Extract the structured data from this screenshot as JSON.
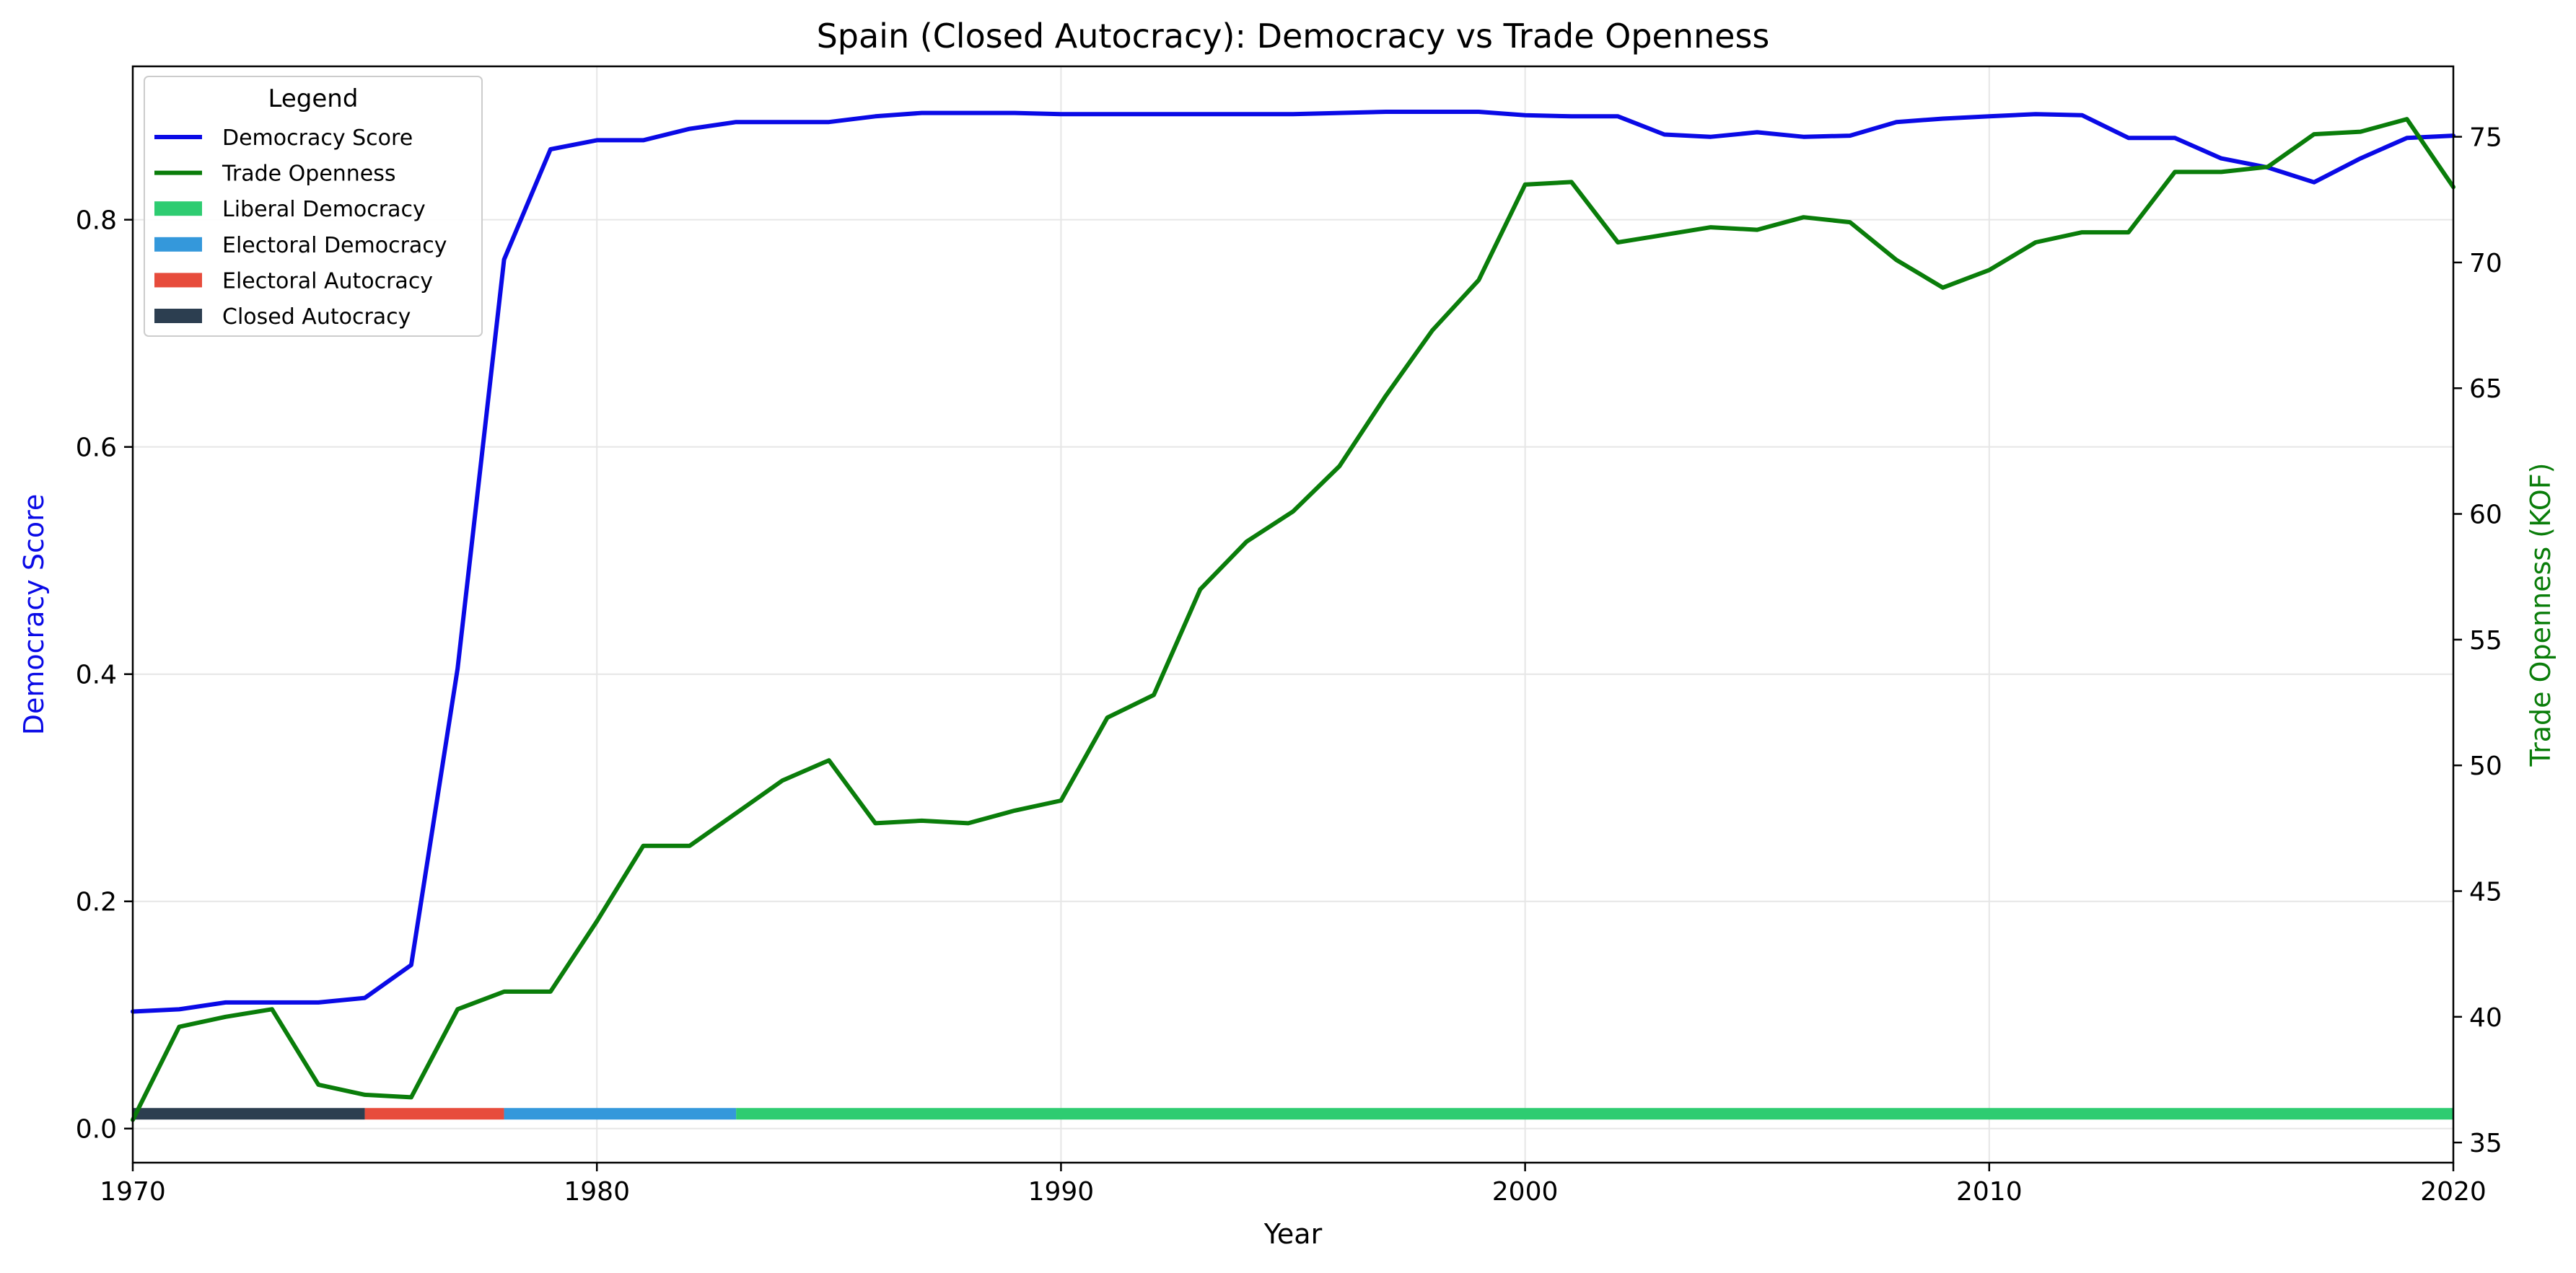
{
  "chart_data": {
    "type": "line",
    "title": "Spain (Closed Autocracy): Democracy vs Trade Openness",
    "xlabel": "Year",
    "ylabel_left": "Democracy Score",
    "ylabel_right": "Trade Openness (KOF)",
    "xlim": [
      1970,
      2020
    ],
    "ylim_left": [
      -0.03,
      0.935
    ],
    "ylim_right": [
      34.2,
      77.8
    ],
    "x_ticks": [
      1970,
      1980,
      1990,
      2000,
      2010,
      2020
    ],
    "y_left_ticks": [
      0.0,
      0.2,
      0.4,
      0.6,
      0.8
    ],
    "y_left_tick_labels": [
      "0.0",
      "0.2",
      "0.4",
      "0.6",
      "0.8"
    ],
    "y_right_ticks": [
      35,
      40,
      45,
      50,
      55,
      60,
      65,
      70,
      75
    ],
    "grid": true,
    "legend_title": "Legend",
    "legend_position": "top-left",
    "colors": {
      "democracy": "#0a0ae6",
      "trade": "#0a7d0a",
      "liberal": "#2ecc71",
      "electoral_dem": "#3498db",
      "electoral_aut": "#e74c3c",
      "closed_aut": "#2c3e50"
    },
    "years": [
      1970,
      1971,
      1972,
      1973,
      1974,
      1975,
      1976,
      1977,
      1978,
      1979,
      1980,
      1981,
      1982,
      1983,
      1984,
      1985,
      1986,
      1987,
      1988,
      1989,
      1990,
      1991,
      1992,
      1993,
      1994,
      1995,
      1996,
      1997,
      1998,
      1999,
      2000,
      2001,
      2002,
      2003,
      2004,
      2005,
      2006,
      2007,
      2008,
      2009,
      2010,
      2011,
      2012,
      2013,
      2014,
      2015,
      2016,
      2017,
      2018,
      2019,
      2020
    ],
    "series": [
      {
        "name": "Democracy Score",
        "axis": "left",
        "color": "#0a0ae6",
        "values": [
          0.103,
          0.105,
          0.111,
          0.111,
          0.111,
          0.115,
          0.144,
          0.405,
          0.765,
          0.862,
          0.87,
          0.87,
          0.88,
          0.886,
          0.886,
          0.886,
          0.891,
          0.894,
          0.894,
          0.894,
          0.893,
          0.893,
          0.893,
          0.893,
          0.893,
          0.893,
          0.894,
          0.895,
          0.895,
          0.895,
          0.892,
          0.891,
          0.891,
          0.875,
          0.873,
          0.877,
          0.873,
          0.874,
          0.886,
          0.889,
          0.891,
          0.893,
          0.892,
          0.872,
          0.872,
          0.854,
          0.846,
          0.833,
          0.854,
          0.872,
          0.874
        ]
      },
      {
        "name": "Trade Openness",
        "axis": "right",
        "color": "#0a7d0a",
        "values": [
          35.9,
          39.6,
          40.0,
          40.3,
          37.3,
          36.9,
          36.8,
          40.3,
          41.0,
          41.0,
          43.8,
          46.8,
          46.8,
          48.1,
          49.4,
          50.2,
          47.7,
          47.8,
          47.7,
          48.2,
          48.6,
          51.9,
          52.8,
          57.0,
          58.9,
          60.1,
          61.9,
          64.7,
          67.3,
          69.3,
          73.1,
          73.2,
          70.8,
          71.1,
          71.4,
          71.3,
          71.8,
          71.6,
          70.1,
          69.0,
          69.7,
          70.8,
          71.2,
          71.2,
          73.6,
          73.6,
          73.8,
          75.1,
          75.2,
          75.7,
          73.0
        ]
      }
    ],
    "regimes": [
      {
        "name": "Closed Autocracy",
        "start": 1970,
        "end": 1975,
        "color": "#2c3e50"
      },
      {
        "name": "Electoral Autocracy",
        "start": 1975,
        "end": 1978,
        "color": "#e74c3c"
      },
      {
        "name": "Electoral Democracy",
        "start": 1978,
        "end": 1983,
        "color": "#3498db"
      },
      {
        "name": "Liberal Democracy",
        "start": 1983,
        "end": 2020,
        "color": "#2ecc71"
      }
    ],
    "regime_band_level": 0.013,
    "legend_entries": [
      {
        "label": "Democracy Score",
        "kind": "line",
        "color": "#0a0ae6"
      },
      {
        "label": "Trade Openness",
        "kind": "line",
        "color": "#0a7d0a"
      },
      {
        "label": "Liberal Democracy",
        "kind": "patch",
        "color": "#2ecc71"
      },
      {
        "label": "Electoral Democracy",
        "kind": "patch",
        "color": "#3498db"
      },
      {
        "label": "Electoral Autocracy",
        "kind": "patch",
        "color": "#e74c3c"
      },
      {
        "label": "Closed Autocracy",
        "kind": "patch",
        "color": "#2c3e50"
      }
    ]
  }
}
